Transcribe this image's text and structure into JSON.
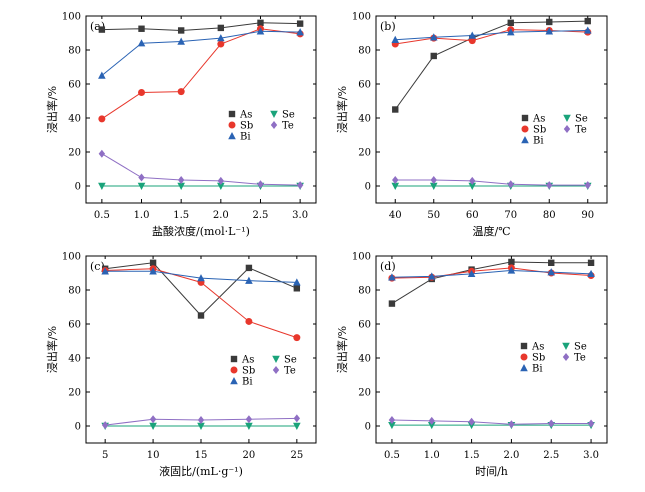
{
  "chart_data": [
    {
      "type": "line",
      "panel_label": "(a)",
      "xlabel": "盐酸浓度/(mol·L⁻¹)",
      "ylabel": "浸出率/%",
      "xlim": [
        0.3,
        3.2
      ],
      "ylim": [
        -10,
        100
      ],
      "xticks": [
        0.5,
        1.0,
        1.5,
        2.0,
        2.5,
        3.0
      ],
      "xtick_labels": [
        "0.5",
        "1.0",
        "1.5",
        "2.0",
        "2.5",
        "3.0"
      ],
      "yticks": [
        0,
        20,
        40,
        60,
        80,
        100
      ],
      "ytick_labels": [
        "0",
        "20",
        "40",
        "60",
        "80",
        "100"
      ],
      "legend_position": "middle-right",
      "x": [
        0.5,
        1.0,
        1.5,
        2.0,
        2.5,
        3.0
      ],
      "series": [
        {
          "name": "As",
          "values": [
            92,
            92.5,
            91.5,
            93,
            96,
            95.5
          ]
        },
        {
          "name": "Sb",
          "values": [
            39.5,
            55,
            55.5,
            83.5,
            92.5,
            89.5
          ]
        },
        {
          "name": "Bi",
          "values": [
            65,
            84,
            85,
            87,
            91,
            90.5
          ]
        },
        {
          "name": "Se",
          "values": [
            0,
            0,
            0,
            0,
            0,
            0
          ]
        },
        {
          "name": "Te",
          "values": [
            19,
            5,
            3.5,
            3,
            1,
            0.5
          ]
        }
      ]
    },
    {
      "type": "line",
      "panel_label": "(b)",
      "xlabel": "温度/℃",
      "ylabel": "浸出率/%",
      "xlim": [
        35,
        95
      ],
      "ylim": [
        -10,
        100
      ],
      "xticks": [
        40,
        50,
        60,
        70,
        80,
        90
      ],
      "xtick_labels": [
        "40",
        "50",
        "60",
        "70",
        "80",
        "90"
      ],
      "yticks": [
        0,
        20,
        40,
        60,
        80,
        100
      ],
      "ytick_labels": [
        "0",
        "20",
        "40",
        "60",
        "80",
        "100"
      ],
      "legend_position": "middle-right",
      "x": [
        40,
        50,
        60,
        70,
        80,
        90
      ],
      "series": [
        {
          "name": "As",
          "values": [
            45,
            76.5,
            87,
            96,
            96.5,
            97
          ]
        },
        {
          "name": "Sb",
          "values": [
            83.5,
            87,
            85.5,
            92,
            91.5,
            90.5
          ]
        },
        {
          "name": "Bi",
          "values": [
            86,
            87.5,
            88.5,
            90.5,
            91,
            91.5
          ]
        },
        {
          "name": "Se",
          "values": [
            0,
            0,
            0,
            0,
            0,
            0
          ]
        },
        {
          "name": "Te",
          "values": [
            3.5,
            3.5,
            3,
            1,
            0.5,
            0.5
          ]
        }
      ]
    },
    {
      "type": "line",
      "panel_label": "(c)",
      "xlabel": "液固比/(mL·g⁻¹)",
      "ylabel": "浸出率/%",
      "xlim": [
        3,
        27
      ],
      "ylim": [
        -10,
        100
      ],
      "xticks": [
        5,
        10,
        15,
        20,
        25
      ],
      "xtick_labels": [
        "5",
        "10",
        "15",
        "20",
        "25"
      ],
      "yticks": [
        0,
        20,
        40,
        60,
        80,
        100
      ],
      "ytick_labels": [
        "0",
        "20",
        "40",
        "60",
        "80",
        "100"
      ],
      "legend_position": "middle-right",
      "x": [
        5,
        10,
        15,
        20,
        25
      ],
      "series": [
        {
          "name": "As",
          "values": [
            92.5,
            96,
            65,
            93,
            81
          ]
        },
        {
          "name": "Sb",
          "values": [
            91.5,
            92.5,
            84.5,
            61.5,
            52
          ]
        },
        {
          "name": "Bi",
          "values": [
            91,
            91,
            87,
            85.5,
            84.5
          ]
        },
        {
          "name": "Se",
          "values": [
            0,
            0,
            0,
            0,
            0
          ]
        },
        {
          "name": "Te",
          "values": [
            0.5,
            4,
            3.5,
            4,
            4.5
          ]
        }
      ]
    },
    {
      "type": "line",
      "panel_label": "(d)",
      "xlabel": "时间/h",
      "ylabel": "浸出率/%",
      "xlim": [
        0.3,
        3.2
      ],
      "ylim": [
        -10,
        100
      ],
      "xticks": [
        0.5,
        1.0,
        1.5,
        2.0,
        2.5,
        3.0
      ],
      "xtick_labels": [
        "0.5",
        "1.0",
        "1.5",
        "2.0",
        "2.5",
        "3.0"
      ],
      "yticks": [
        0,
        20,
        40,
        60,
        80,
        100
      ],
      "ytick_labels": [
        "0",
        "20",
        "40",
        "60",
        "80",
        "100"
      ],
      "legend_position": "middle-right",
      "x": [
        0.5,
        1.0,
        1.5,
        2.0,
        2.5,
        3.0
      ],
      "series": [
        {
          "name": "As",
          "values": [
            72,
            86.5,
            92,
            96.5,
            96,
            96
          ]
        },
        {
          "name": "Sb",
          "values": [
            87,
            87.5,
            91,
            93,
            90,
            88.5
          ]
        },
        {
          "name": "Bi",
          "values": [
            87.5,
            88,
            89.5,
            91.5,
            90.5,
            89.5
          ]
        },
        {
          "name": "Se",
          "values": [
            0.5,
            0.5,
            0.5,
            0.5,
            0.5,
            0.5
          ]
        },
        {
          "name": "Te",
          "values": [
            3.5,
            3,
            2.5,
            1,
            1.5,
            1.5
          ]
        }
      ]
    }
  ],
  "series_colors": {
    "As": "#3a3a3a",
    "Sb": "#e8372c",
    "Bi": "#2a63b4",
    "Se": "#1aa37a",
    "Te": "#8f6fc4"
  },
  "series_markers": {
    "As": "square",
    "Sb": "circle",
    "Bi": "triangle-up",
    "Se": "triangle-down",
    "Te": "diamond"
  }
}
